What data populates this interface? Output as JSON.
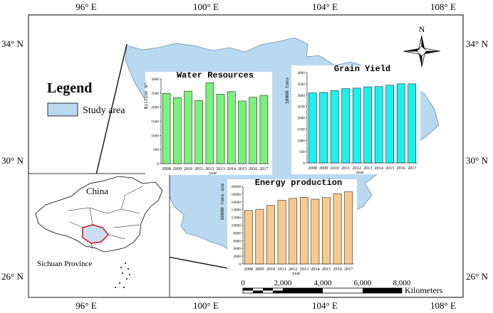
{
  "coords": {
    "lon": [
      "96° E",
      "100° E",
      "104° E",
      "108° E"
    ],
    "lat": [
      "34° N",
      "30° N",
      "26° N"
    ]
  },
  "legend": {
    "title": "Legend",
    "item": "Study area"
  },
  "north": "N",
  "inset": {
    "country": "China",
    "province": "Sichuan Province"
  },
  "scale": {
    "ticks": [
      "0",
      "2,000",
      "4,000",
      "6,000",
      "8,000"
    ],
    "unit": "Kilometers"
  },
  "colors": {
    "study_area": "#b9d9f0",
    "water": "#7cf07c",
    "grain": "#1ef0f0",
    "energy": "#f7c98e"
  },
  "chart_data": [
    {
      "type": "bar",
      "title": "Water Resources",
      "xlabel": "year",
      "ylabel": "Billion m³",
      "categories": [
        "2008",
        "2009",
        "2010",
        "2011",
        "2012",
        "2013",
        "2014",
        "2015",
        "2016",
        "2017"
      ],
      "values": [
        2490,
        2340,
        2570,
        2240,
        2870,
        2460,
        2550,
        2220,
        2350,
        2420
      ],
      "ylim": [
        0,
        3000
      ],
      "yticks": [
        "0",
        "500",
        "1000",
        "1500",
        "2000",
        "2500",
        "3000"
      ]
    },
    {
      "type": "bar",
      "title": "Grain Yield",
      "xlabel": "year",
      "ylabel": "10000 tons",
      "categories": [
        "2008",
        "2009",
        "2010",
        "2011",
        "2012",
        "2013",
        "2014",
        "2015",
        "2016",
        "2017"
      ],
      "values": [
        3100,
        3120,
        3200,
        3290,
        3310,
        3370,
        3380,
        3440,
        3500,
        3500
      ],
      "ylim": [
        0,
        4000
      ],
      "yticks": [
        "0",
        "500",
        "1000",
        "1500",
        "2000",
        "2500",
        "3000",
        "3500",
        "4000"
      ]
    },
    {
      "type": "bar",
      "title": "Energy production",
      "xlabel": "year",
      "ylabel": "10000 tons sce",
      "categories": [
        "2008",
        "2009",
        "2010",
        "2011",
        "2012",
        "2013",
        "2014",
        "2015",
        "2016",
        "2017"
      ],
      "values": [
        13800,
        14100,
        15100,
        16400,
        16900,
        17200,
        16700,
        17100,
        18100,
        18600
      ],
      "ylim": [
        0,
        20000
      ],
      "yticks": [
        "0",
        "2000",
        "4000",
        "6000",
        "8000",
        "10000",
        "12000",
        "14000",
        "16000",
        "18000",
        "20000"
      ]
    }
  ]
}
